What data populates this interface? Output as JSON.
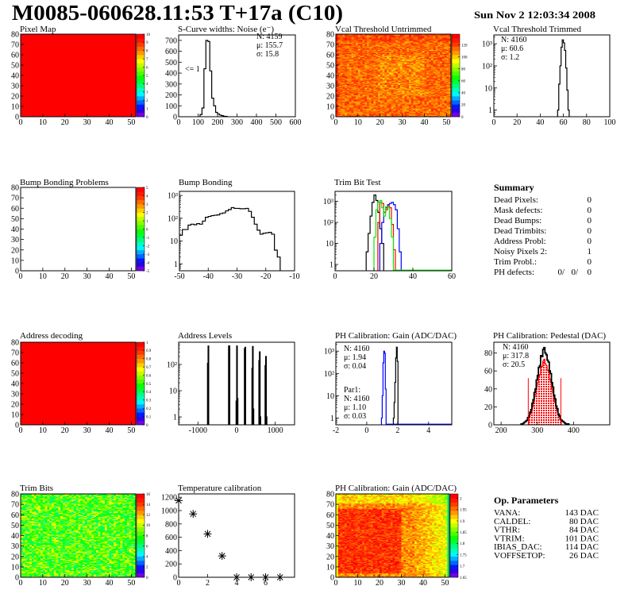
{
  "header": {
    "title": "M0085-060628.11:53 T+17a (C10)",
    "timestamp": "Sun Nov  2 12:03:34 2008"
  },
  "summary": {
    "title": "Summary",
    "items": [
      {
        "label": "Dead Pixels:",
        "value": "0"
      },
      {
        "label": "Mask defects:",
        "value": "0"
      },
      {
        "label": "Dead Bumps:",
        "value": "0"
      },
      {
        "label": "Dead Trimbits:",
        "value": "0"
      },
      {
        "label": "Address Probl:",
        "value": "0"
      },
      {
        "label": "Noisy Pixels 2:",
        "value": "1"
      },
      {
        "label": "Trim Probl.:",
        "value": "0"
      }
    ],
    "ph_defects": {
      "label": "PH defects:",
      "values": [
        "0/",
        "0/",
        "0"
      ],
      "colors": [
        "#000000",
        "#ff0000",
        "#0000ff"
      ]
    }
  },
  "op_parameters": {
    "title": "Op. Parameters",
    "items": [
      {
        "label": "VANA:",
        "value": "143 DAC"
      },
      {
        "label": "CALDEL:",
        "value": "80 DAC"
      },
      {
        "label": "VTHR:",
        "value": "84 DAC"
      },
      {
        "label": "VTRIM:",
        "value": "101 DAC"
      },
      {
        "label": "IBIAS_DAC:",
        "value": "114 DAC"
      },
      {
        "label": "VOFFSETOP:",
        "value": "26 DAC"
      }
    ]
  },
  "chart_data": [
    {
      "type": "heatmap",
      "title": "Pixel Map",
      "xlim": [
        0,
        52
      ],
      "ylim": [
        0,
        80
      ],
      "zlim": [
        0,
        10
      ],
      "xticks": [
        0,
        10,
        20,
        30,
        40,
        50
      ],
      "yticks": [
        0,
        10,
        20,
        30,
        40,
        50,
        60,
        70,
        80
      ],
      "zticks": [
        0,
        1,
        2,
        3,
        4,
        5,
        6,
        7,
        8,
        9,
        10
      ],
      "cells": {
        "mode": "uniform",
        "value": 10
      }
    },
    {
      "type": "histogram",
      "title": "S-Curve widths: Noise (e⁻)",
      "xlim": [
        0,
        600
      ],
      "ylim": [
        0,
        750
      ],
      "logy": false,
      "xticks": [
        0,
        100,
        200,
        300,
        400,
        500,
        600
      ],
      "yticks": [
        0,
        100,
        200,
        300,
        400,
        500,
        600,
        700
      ],
      "series": [
        {
          "color": "#000000",
          "start": 110,
          "width": 10,
          "values": [
            20,
            80,
            440,
            700,
            690,
            420,
            170,
            100,
            40,
            25,
            15,
            10,
            5,
            3
          ]
        }
      ],
      "stats": [
        {
          "lines": [
            "N: 4159",
            "μ: 155.7",
            "σ: 15.8"
          ],
          "colors": [
            "#000000",
            "#000000",
            "#000000"
          ]
        }
      ],
      "annotations": [
        "<= 1"
      ]
    },
    {
      "type": "heatmap",
      "title": "Vcal Threshold Untrimmed",
      "xlim": [
        0,
        52
      ],
      "ylim": [
        0,
        80
      ],
      "zlim": [
        0,
        138
      ],
      "xticks": [
        0,
        10,
        20,
        30,
        40,
        50
      ],
      "yticks": [
        0,
        10,
        20,
        30,
        40,
        50,
        60,
        70,
        80
      ],
      "zticks": [
        0,
        20,
        40,
        60,
        80,
        100,
        120
      ],
      "cells": {
        "mode": "random",
        "mean": 114,
        "spread": 11,
        "pattern": "edge_high",
        "seed": 7
      }
    },
    {
      "type": "histogram",
      "title": "Vcal Threshold Trimmed",
      "xlim": [
        0,
        100
      ],
      "ylim": [
        0.5,
        2500
      ],
      "logy": true,
      "xticks": [
        0,
        20,
        40,
        60,
        80,
        100
      ],
      "yticks": [
        1,
        10,
        100,
        1000
      ],
      "yticks_labels": [
        "1",
        "10",
        "10²",
        "10³"
      ],
      "series": [
        {
          "color": "#000000",
          "start": 55,
          "width": 1,
          "values": [
            1,
            15,
            100,
            700,
            1500,
            1100,
            500,
            80,
            8,
            1
          ]
        }
      ],
      "stats": [
        {
          "lines": [
            "N: 4160",
            "μ: 60.6",
            "σ:  1.2"
          ],
          "colors": [
            "#000000",
            "#000000",
            "#000000"
          ]
        }
      ]
    },
    {
      "type": "heatmap",
      "title": "Bump Bonding Problems",
      "xlim": [
        0,
        52
      ],
      "ylim": [
        0,
        80
      ],
      "zlim": [
        -5,
        5
      ],
      "xticks": [
        0,
        10,
        20,
        30,
        40,
        50
      ],
      "yticks": [
        0,
        10,
        20,
        30,
        40,
        50,
        60,
        70,
        80
      ],
      "zticks": [
        -5,
        -4,
        -3,
        -2,
        -1,
        0,
        1,
        2,
        3,
        4,
        5
      ],
      "cells": {
        "mode": "empty"
      }
    },
    {
      "type": "histogram",
      "title": "Bump Bonding",
      "xlim": [
        -50,
        -10
      ],
      "ylim": [
        0.5,
        1500
      ],
      "logy": true,
      "xticks": [
        -50,
        -40,
        -30,
        -20,
        -10
      ],
      "yticks": [
        1,
        10,
        100,
        1000
      ],
      "yticks_labels": [
        "1",
        "10",
        "10²",
        "10³"
      ],
      "series": [
        {
          "color": "#000000",
          "start": -50,
          "width": 1,
          "values": [
            18,
            32,
            32,
            50,
            55,
            52,
            58,
            55,
            75,
            110,
            120,
            130,
            135,
            140,
            160,
            170,
            210,
            240,
            290,
            270,
            270,
            260,
            260,
            270,
            200,
            110,
            55,
            30,
            20,
            22,
            23,
            24,
            20,
            4,
            2
          ]
        }
      ]
    },
    {
      "type": "histogram",
      "title": "Trim Bit Test",
      "xlim": [
        0,
        60
      ],
      "ylim": [
        0.5,
        3000
      ],
      "logy": true,
      "xticks": [
        0,
        20,
        40,
        60
      ],
      "yticks": [
        1,
        10,
        100,
        1000
      ],
      "yticks_labels": [
        "1",
        "10",
        "10²",
        "10³"
      ],
      "series": [
        {
          "color": "#000000",
          "start": 16,
          "width": 1,
          "values": [
            4,
            30,
            200,
            900,
            2000,
            1100,
            300,
            50,
            10
          ]
        },
        {
          "color": "#0000ff",
          "start": 23,
          "width": 1,
          "values": [
            10,
            100,
            300,
            500,
            700,
            800,
            900,
            700,
            400,
            50,
            4
          ]
        },
        {
          "color": "#ff0000",
          "start": 22,
          "width": 1,
          "values": [
            100,
            900,
            800,
            300,
            400,
            600,
            500,
            80,
            5
          ]
        },
        {
          "color": "#00ee00",
          "start": 20,
          "width": 1,
          "values": [
            20,
            400,
            900,
            1100,
            500,
            200,
            550,
            500,
            150,
            20
          ],
          "baseline_to": 60
        }
      ]
    },
    {
      "type": "heatmap",
      "title": "Address decoding",
      "xlim": [
        0,
        52
      ],
      "ylim": [
        0,
        80
      ],
      "zlim": [
        0,
        1
      ],
      "xticks": [
        0,
        10,
        20,
        30,
        40,
        50
      ],
      "yticks": [
        0,
        10,
        20,
        30,
        40,
        50,
        60,
        70,
        80
      ],
      "zticks": [
        0,
        0.1,
        0.2,
        0.3,
        0.4,
        0.5,
        0.6,
        0.7,
        0.8,
        0.9,
        1
      ],
      "cells": {
        "mode": "uniform",
        "value": 1
      }
    },
    {
      "type": "histogram",
      "title": "Address Levels",
      "xlim": [
        -1500,
        1500
      ],
      "ylim": [
        0.5,
        700
      ],
      "logy": true,
      "xticks": [
        -1000,
        0,
        1000
      ],
      "yticks": [
        1,
        10,
        100
      ],
      "yticks_labels": [
        "1",
        "10",
        "10²"
      ],
      "peaks": {
        "color": "#000000",
        "width": 15,
        "points": [
          [
            -745,
            110
          ],
          [
            -730,
            500
          ],
          [
            -200,
            500
          ],
          [
            -185,
            500
          ],
          [
            -5,
            4
          ],
          [
            10,
            500
          ],
          [
            25,
            5
          ],
          [
            210,
            400
          ],
          [
            225,
            450
          ],
          [
            405,
            70
          ],
          [
            420,
            480
          ],
          [
            435,
            2
          ],
          [
            585,
            140
          ],
          [
            600,
            300
          ],
          [
            615,
            1
          ],
          [
            745,
            90
          ],
          [
            760,
            200
          ],
          [
            775,
            1
          ]
        ]
      }
    },
    {
      "type": "histogram",
      "title": "PH Calibration: Gain (ADC/DAC)",
      "xlim": [
        -2,
        5.5
      ],
      "ylim": [
        0.5,
        2500
      ],
      "logy": true,
      "xticks": [
        -2,
        0,
        2,
        4
      ],
      "yticks": [
        1,
        10,
        100,
        1000
      ],
      "yticks_labels": [
        "1",
        "10",
        "10²",
        "10³"
      ],
      "series": [
        {
          "color": "#000000",
          "start": 1.72,
          "width": 0.05,
          "values": [
            1,
            5,
            40,
            500,
            1500,
            350
          ]
        },
        {
          "color": "#0000ff",
          "start": 0.95,
          "width": 0.05,
          "values": [
            1,
            10,
            300,
            1000,
            800,
            20
          ],
          "baseline_to": 5.5
        }
      ],
      "stats": [
        {
          "lines": [
            "N: 4160",
            "μ: 1.94",
            "σ: 0.04"
          ],
          "colors": [
            "#000000",
            "#000000",
            "#000000"
          ]
        },
        {
          "lines": [
            "Par1:",
            "N: 4160",
            "μ: 1.10",
            "σ: 0.03"
          ],
          "colors": [
            "#0000ff",
            "#0000ff",
            "#0000ff",
            "#0000ff"
          ]
        }
      ]
    },
    {
      "type": "histogram",
      "title": "PH Calibration: Pedestal (DAC)",
      "xlim": [
        180,
        500
      ],
      "ylim": [
        0,
        92
      ],
      "logy": false,
      "xticks": [
        200,
        300,
        400
      ],
      "yticks": [
        0,
        20,
        40,
        60,
        80
      ],
      "series": [
        {
          "color": "#ff0000",
          "start": 276,
          "width": 3,
          "fill": "dotted",
          "values": [
            9,
            12,
            14,
            20,
            24,
            31,
            34,
            43,
            47,
            54,
            56,
            65,
            65,
            71,
            73,
            68,
            66,
            61,
            60,
            51,
            48,
            40,
            36,
            28,
            25,
            18,
            15,
            10,
            9,
            5
          ]
        },
        {
          "color": "#000000",
          "start": 255,
          "width": 3,
          "thick": true,
          "values": [
            1,
            1,
            2,
            3,
            4,
            5,
            8,
            10,
            14,
            17,
            24,
            28,
            36,
            40,
            50,
            55,
            64,
            66,
            77,
            76,
            84,
            86,
            80,
            78,
            72,
            70,
            60,
            57,
            47,
            42,
            33,
            29,
            21,
            18,
            12,
            10,
            6,
            5,
            4,
            3,
            2,
            1,
            1,
            1
          ]
        }
      ],
      "cut_lines": {
        "color": "#ff0000",
        "x": [
          275,
          365
        ],
        "height": 52
      },
      "stats": [
        {
          "lines": [
            "N: 4160",
            "μ: 317.8",
            "σ: 20.5"
          ],
          "colors": [
            "#000000",
            "#ff0000",
            "#ff0000"
          ]
        }
      ]
    },
    {
      "type": "heatmap",
      "title": "Trim Bits",
      "xlim": [
        0,
        52
      ],
      "ylim": [
        0,
        80
      ],
      "zlim": [
        0,
        16
      ],
      "xticks": [
        0,
        10,
        20,
        30,
        40,
        50
      ],
      "yticks": [
        0,
        10,
        20,
        30,
        40,
        50,
        60,
        70,
        80
      ],
      "zticks": [
        0,
        2,
        4,
        6,
        8,
        10,
        12,
        14,
        16
      ],
      "cells": {
        "mode": "random",
        "mean": 8.3,
        "spread": 2.6,
        "pattern": "none",
        "seed": 21
      }
    },
    {
      "type": "scatter",
      "title": "Temperature calibration",
      "xlim": [
        0,
        8
      ],
      "ylim": [
        0,
        1250
      ],
      "xticks": [
        0,
        2,
        4,
        6
      ],
      "yticks": [
        0,
        200,
        400,
        600,
        800,
        1000,
        1200
      ],
      "points": [
        [
          0,
          1150
        ],
        [
          1,
          950
        ],
        [
          2,
          650
        ],
        [
          3,
          320
        ],
        [
          4,
          0
        ],
        [
          5,
          0
        ],
        [
          6,
          0
        ],
        [
          7,
          0
        ]
      ]
    },
    {
      "type": "heatmap",
      "title": "PH Calibration: Gain (ADC/DAC)",
      "xlim": [
        0,
        52
      ],
      "ylim": [
        0,
        80
      ],
      "zlim": [
        1.65,
        2.02
      ],
      "xticks": [
        0,
        10,
        20,
        30,
        40,
        50
      ],
      "yticks": [
        0,
        10,
        20,
        30,
        40,
        50,
        60,
        70,
        80
      ],
      "zticks": [
        1.65,
        1.7,
        1.75,
        1.8,
        1.85,
        1.9,
        1.95,
        2
      ],
      "cells": {
        "mode": "random",
        "mean": 1.955,
        "spread": 0.03,
        "pattern": "ph_gain",
        "seed": 3
      }
    }
  ]
}
